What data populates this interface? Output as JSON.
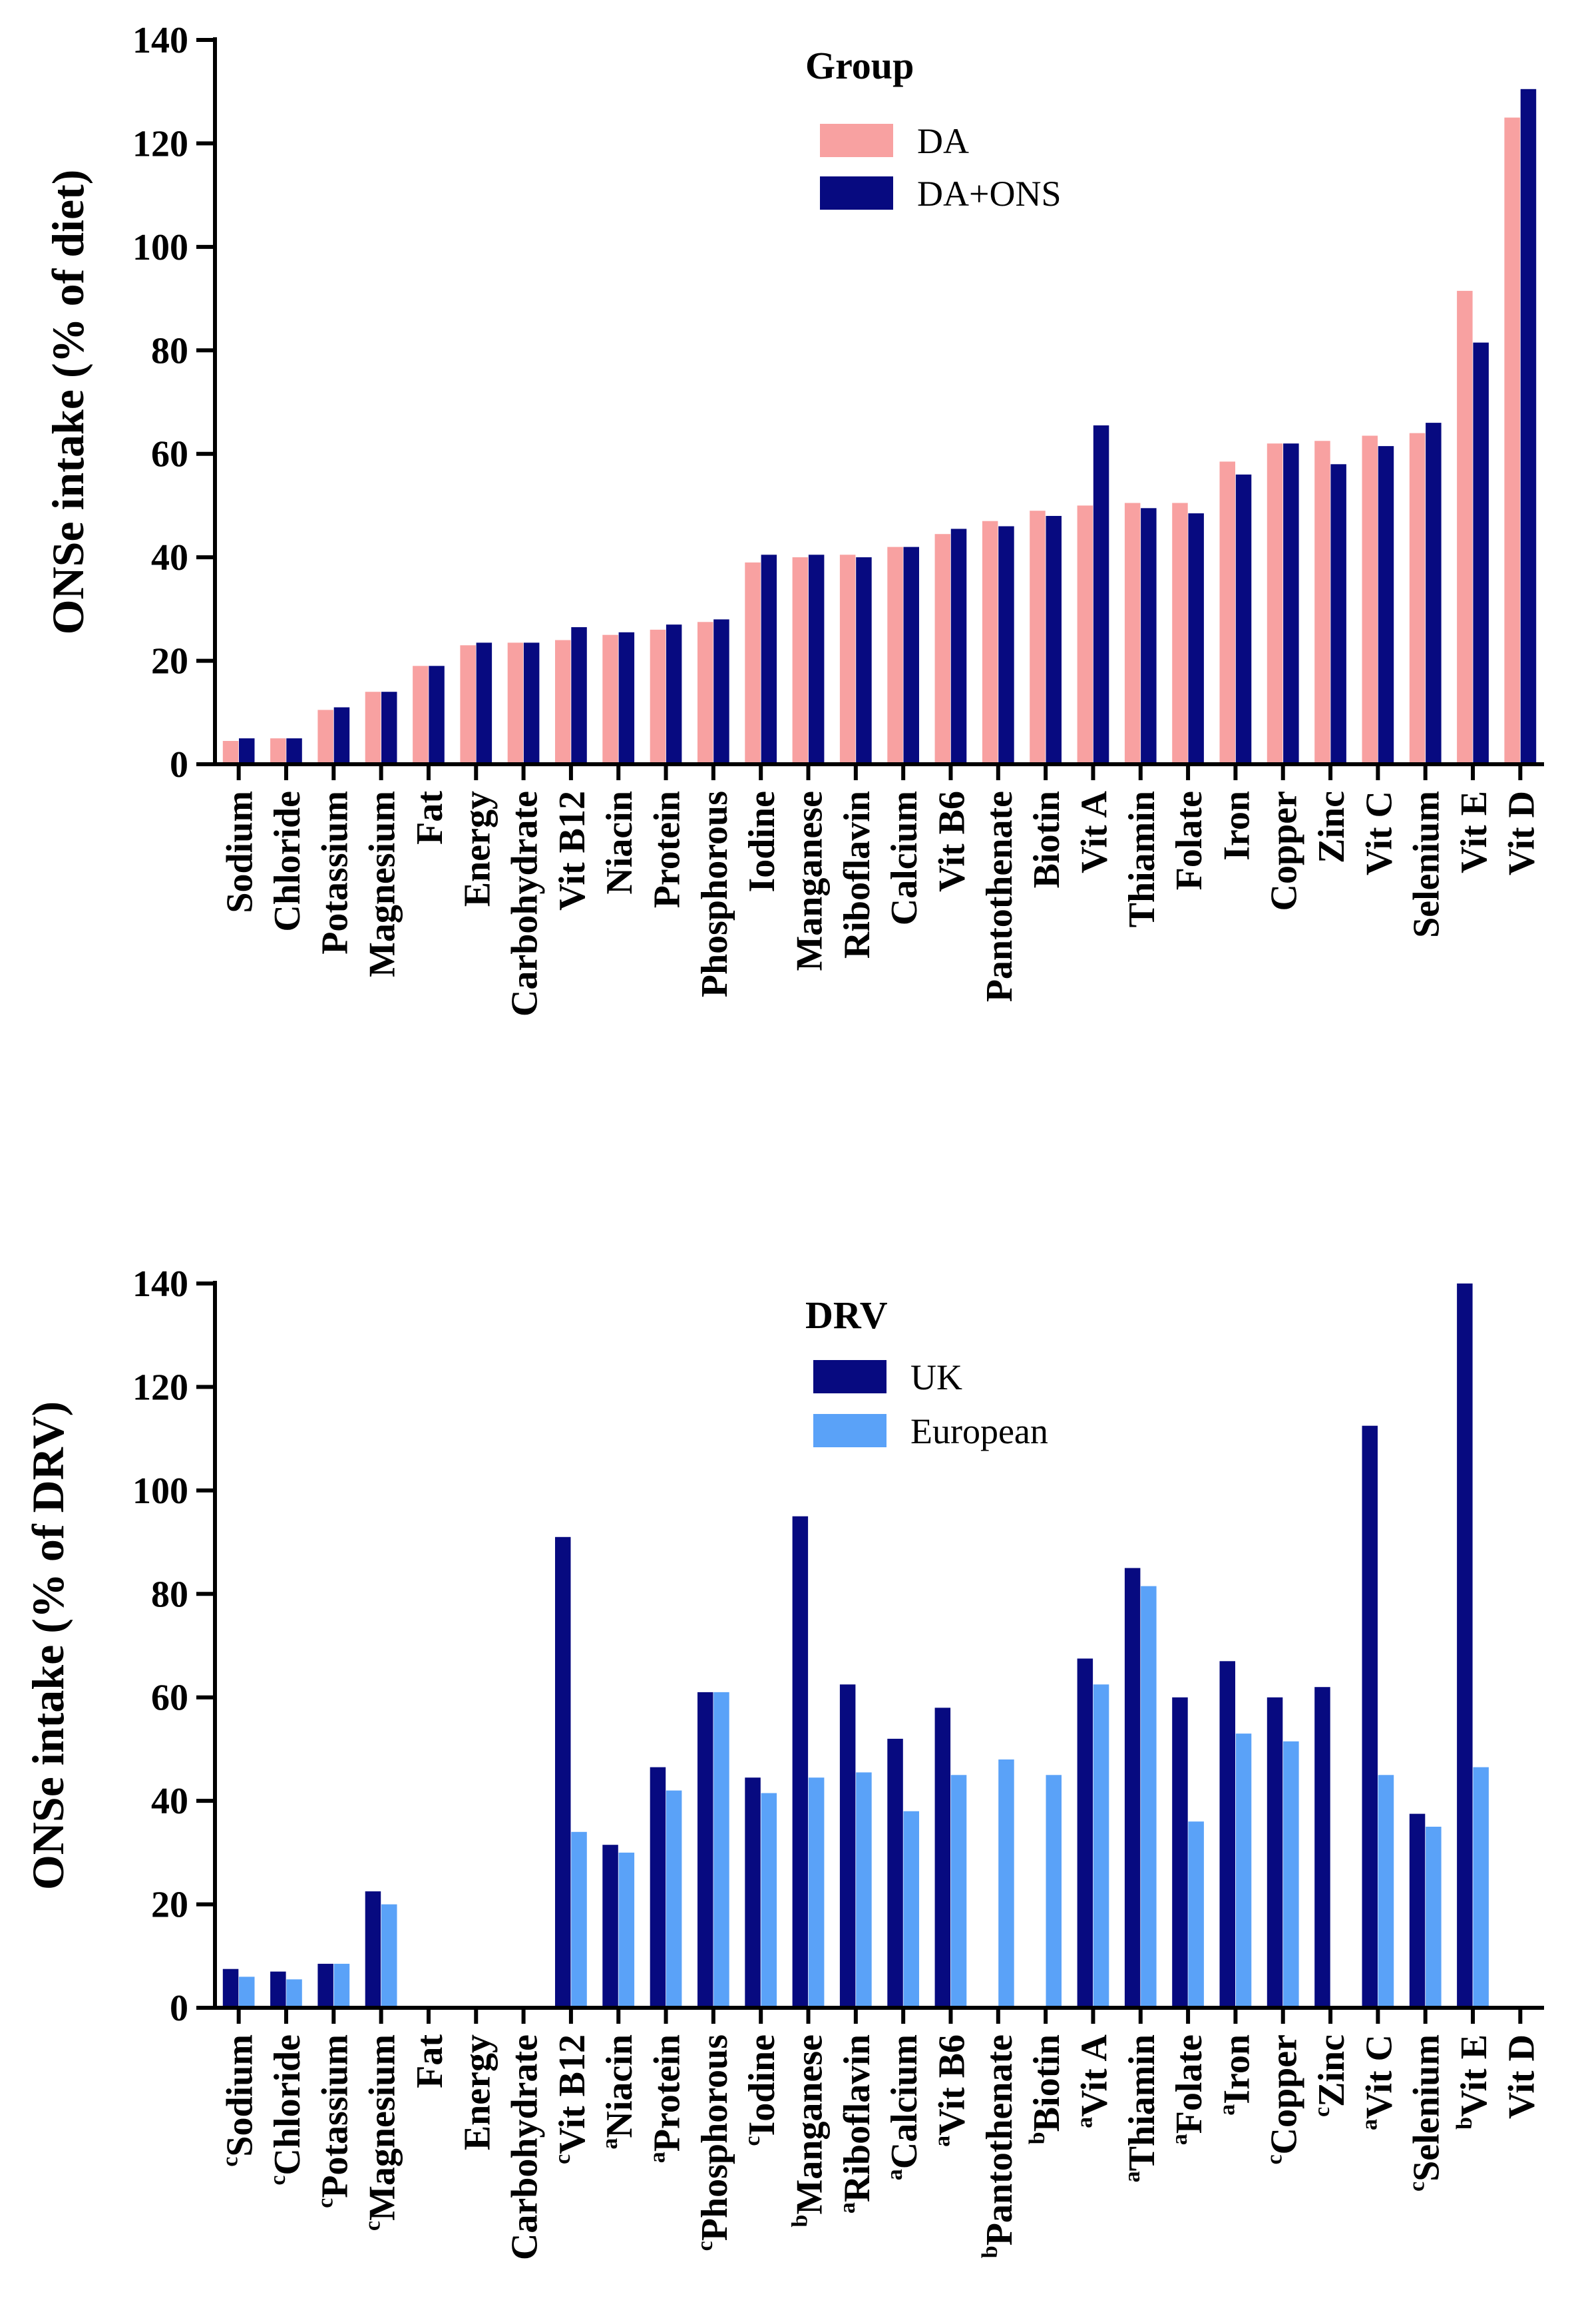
{
  "colors": {
    "da": "#f8a1a1",
    "da_ons": "#070a80",
    "uk": "#070a80",
    "european": "#5aa2f8",
    "axis": "#000000"
  },
  "chart_data": [
    {
      "type": "bar",
      "ylabel": "ONSe intake (% of diet)",
      "ylim": [
        0,
        140
      ],
      "yticks": [
        0,
        20,
        40,
        60,
        80,
        100,
        120,
        140
      ],
      "legend_title": "Group",
      "legend_position": "top-right",
      "categories": [
        "Sodium",
        "Chloride",
        "Potassium",
        "Magnesium",
        "Fat",
        "Energy",
        "Carbohydrate",
        "Vit B12",
        "Niacin",
        "Protein",
        "Phosphorous",
        "Iodine",
        "Manganese",
        "Riboflavin",
        "Calcium",
        "Vit B6",
        "Pantothenate",
        "Biotin",
        "Vit A",
        "Thiamin",
        "Folate",
        "Iron",
        "Copper",
        "Zinc",
        "Vit C",
        "Selenium",
        "Vit E",
        "Vit D"
      ],
      "series": [
        {
          "name": "DA",
          "values": [
            4.5,
            5,
            10.5,
            14,
            19,
            23,
            23.5,
            24,
            25,
            26,
            27.5,
            39,
            40,
            40.5,
            42,
            44.5,
            47,
            49,
            50,
            50.5,
            50.5,
            58.5,
            62,
            62.5,
            63.5,
            64,
            91.5,
            125
          ]
        },
        {
          "name": "DA+ONS",
          "values": [
            5,
            5,
            11,
            14,
            19,
            23.5,
            23.5,
            26.5,
            25.5,
            27,
            28,
            40.5,
            40.5,
            40,
            42,
            45.5,
            46,
            48,
            65.5,
            49.5,
            48.5,
            56,
            62,
            58,
            61.5,
            66,
            81.5,
            130.5
          ]
        }
      ]
    },
    {
      "type": "bar",
      "ylabel": "ONSe intake (% of DRV)",
      "ylim": [
        0,
        140
      ],
      "yticks": [
        0,
        20,
        40,
        60,
        80,
        100,
        120,
        140
      ],
      "legend_title": "DRV",
      "legend_position": "top-right",
      "categories": [
        "Sodium",
        "Chloride",
        "Potassium",
        "Magnesium",
        "Fat",
        "Energy",
        "Carbohydrate",
        "Vit B12",
        "Niacin",
        "Protein",
        "Phosphorous",
        "Iodine",
        "Manganese",
        "Riboflavin",
        "Calcium",
        "Vit B6",
        "Pantothenate",
        "Biotin",
        "Vit A",
        "Thiamin",
        "Folate",
        "Iron",
        "Copper",
        "Zinc",
        "Vit C",
        "Selenium",
        "Vit E",
        "Vit D"
      ],
      "superscripts": [
        "c",
        "c",
        "c",
        "c",
        "",
        "",
        "",
        "c",
        "a",
        "a",
        "c",
        "c",
        "b",
        "a",
        "a",
        "a",
        "b",
        "b",
        "a",
        "a",
        "a",
        "a",
        "c",
        "c",
        "a",
        "c",
        "b",
        ""
      ],
      "series": [
        {
          "name": "UK",
          "values": [
            7.5,
            7,
            8.5,
            22.5,
            0,
            0,
            0,
            91,
            31.5,
            46.5,
            61,
            44.5,
            95,
            62.5,
            52,
            58,
            0,
            0,
            67.5,
            85,
            60,
            67,
            60,
            62,
            112.5,
            37.5,
            140,
            0
          ]
        },
        {
          "name": "European",
          "values": [
            6,
            5.5,
            8.5,
            20,
            0,
            0,
            0,
            34,
            30,
            42,
            61,
            41.5,
            44.5,
            45.5,
            38,
            45,
            48,
            45,
            62.5,
            81.5,
            36,
            53,
            51.5,
            0,
            45,
            35,
            46.5,
            0
          ]
        }
      ]
    }
  ]
}
